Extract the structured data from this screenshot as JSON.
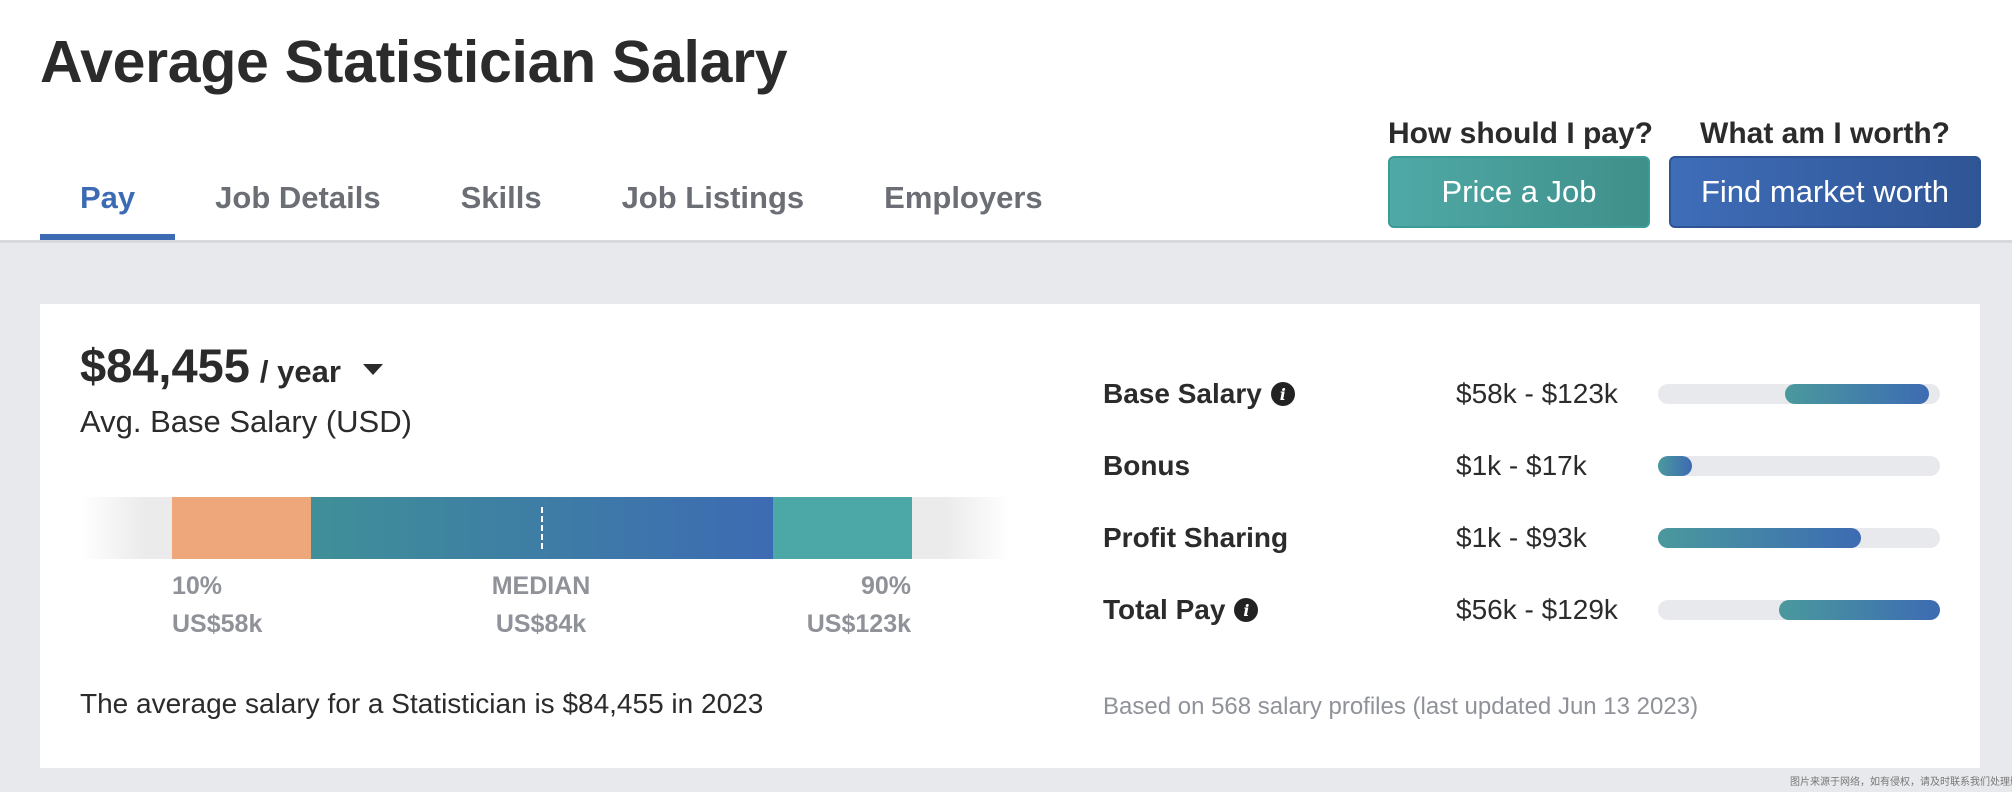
{
  "page": {
    "title": "Average Statistician Salary"
  },
  "tabs": [
    {
      "label": "Pay",
      "active": true
    },
    {
      "label": "Job Details",
      "active": false
    },
    {
      "label": "Skills",
      "active": false
    },
    {
      "label": "Job Listings",
      "active": false
    },
    {
      "label": "Employers",
      "active": false
    }
  ],
  "cta": {
    "price": {
      "question": "How should I pay?",
      "button": "Price a Job"
    },
    "worth": {
      "question": "What am I worth?",
      "button": "Find market worth"
    }
  },
  "salary": {
    "amount": "$84,455",
    "period": "/ year",
    "subtitle": "Avg. Base Salary (USD)",
    "percentiles": {
      "p10_label": "10%",
      "p10_value": "US$58k",
      "median_label": "MEDIAN",
      "median_value": "US$84k",
      "p90_label": "90%",
      "p90_value": "US$123k"
    },
    "summary": "The average salary for a Statistician is $84,455 in 2023"
  },
  "breakdown": {
    "rows": [
      {
        "label": "Base Salary",
        "range": "$58k - $123k",
        "info": true,
        "fill_start": 0.45,
        "fill_end": 0.96
      },
      {
        "label": "Bonus",
        "range": "$1k - $17k",
        "info": false,
        "fill_start": 0.0,
        "fill_end": 0.12
      },
      {
        "label": "Profit Sharing",
        "range": "$1k - $93k",
        "info": false,
        "fill_start": 0.0,
        "fill_end": 0.72
      },
      {
        "label": "Total Pay",
        "range": "$56k - $129k",
        "info": true,
        "fill_start": 0.43,
        "fill_end": 1.0
      }
    ],
    "footnote": "Based on 568 salary profiles (last updated Jun 13 2023)"
  },
  "watermark": "图片来源于网络，如有侵权，请及时联系我们处理删除",
  "colors": {
    "accent_blue": "#3d6bb3",
    "accent_teal": "#4fa9a6",
    "low_segment": "#eda77a",
    "high_segment": "#4ca8a6",
    "page_gray": "#e8e9ec"
  }
}
